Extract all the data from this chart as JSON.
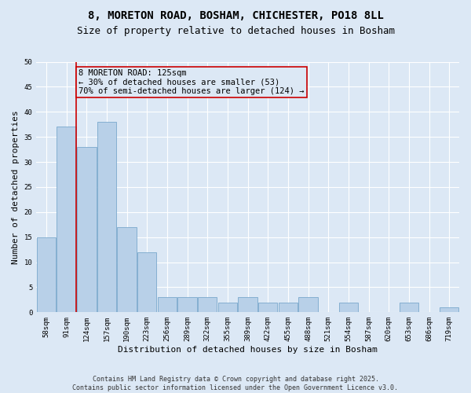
{
  "title1": "8, MORETON ROAD, BOSHAM, CHICHESTER, PO18 8LL",
  "title2": "Size of property relative to detached houses in Bosham",
  "xlabel": "Distribution of detached houses by size in Bosham",
  "ylabel": "Number of detached properties",
  "categories": [
    "58sqm",
    "91sqm",
    "124sqm",
    "157sqm",
    "190sqm",
    "223sqm",
    "256sqm",
    "289sqm",
    "322sqm",
    "355sqm",
    "389sqm",
    "422sqm",
    "455sqm",
    "488sqm",
    "521sqm",
    "554sqm",
    "587sqm",
    "620sqm",
    "653sqm",
    "686sqm",
    "719sqm"
  ],
  "values": [
    15,
    37,
    33,
    38,
    17,
    12,
    3,
    3,
    3,
    2,
    3,
    2,
    2,
    3,
    0,
    2,
    0,
    0,
    2,
    0,
    1
  ],
  "bar_color": "#b8d0e8",
  "bar_edge_color": "#7aa8cc",
  "bar_width": 0.95,
  "vline_color": "#cc0000",
  "annotation_text": "8 MORETON ROAD: 125sqm\n← 30% of detached houses are smaller (53)\n70% of semi-detached houses are larger (124) →",
  "annotation_box_color": "#cc0000",
  "ylim": [
    0,
    50
  ],
  "yticks": [
    0,
    5,
    10,
    15,
    20,
    25,
    30,
    35,
    40,
    45,
    50
  ],
  "background_color": "#dce8f5",
  "footer": "Contains HM Land Registry data © Crown copyright and database right 2025.\nContains public sector information licensed under the Open Government Licence v3.0.",
  "title_fontsize": 10,
  "subtitle_fontsize": 9,
  "axis_label_fontsize": 8,
  "tick_fontsize": 6.5,
  "annotation_fontsize": 7.5,
  "footer_fontsize": 6
}
